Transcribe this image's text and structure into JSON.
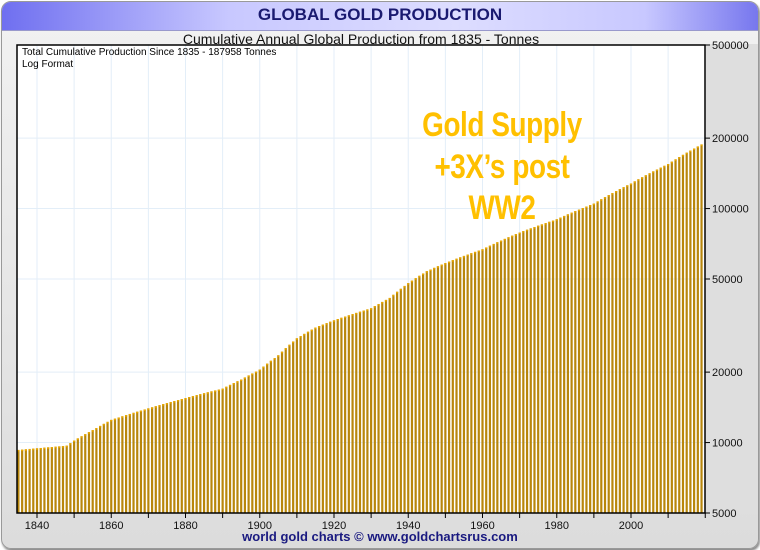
{
  "header": {
    "title": "GLOBAL GOLD PRODUCTION"
  },
  "footer": "world gold charts © www.goldchartsrus.com",
  "chart_data": {
    "type": "bar",
    "title": "Cumulative Annual Global Production from 1835 - Tonnes",
    "notes": [
      "Total Cumulative Production Since 1835 - 187958  Tonnes",
      "Log Format"
    ],
    "annotation": [
      "Gold Supply",
      "+3X’s post",
      "WW2"
    ],
    "annotation_color": "#ffc000",
    "bar_color": "#b8860b",
    "y_scale": "log",
    "ylim": [
      5000,
      500000
    ],
    "y_ticks": [
      5000,
      10000,
      20000,
      50000,
      100000,
      200000,
      500000
    ],
    "x_ticks": [
      1840,
      1860,
      1880,
      1900,
      1920,
      1940,
      1960,
      1980,
      2000
    ],
    "y_axis_position": "right",
    "grid": true,
    "x_start": 1835,
    "x_end": 2019,
    "values": [
      9300,
      9330,
      9360,
      9390,
      9420,
      9450,
      9480,
      9510,
      9540,
      9570,
      9600,
      9630,
      9660,
      9700,
      9950,
      10200,
      10420,
      10640,
      10860,
      11080,
      11300,
      11540,
      11780,
      12020,
      12260,
      12500,
      12650,
      12800,
      12950,
      13100,
      13250,
      13400,
      13550,
      13700,
      13850,
      14000,
      14150,
      14300,
      14450,
      14600,
      14750,
      14900,
      15050,
      15200,
      15350,
      15500,
      15650,
      15800,
      15950,
      16100,
      16250,
      16400,
      16550,
      16700,
      16850,
      17000,
      17320,
      17640,
      17960,
      18280,
      18600,
      18980,
      19360,
      19740,
      20120,
      20500,
      21120,
      21740,
      22360,
      22980,
      23600,
      24460,
      25320,
      26180,
      27040,
      27900,
      28520,
      29140,
      29760,
      30380,
      31000,
      31460,
      31920,
      32380,
      32840,
      33300,
      33720,
      34140,
      34560,
      34980,
      35400,
      35820,
      36240,
      36660,
      37080,
      37500,
      38300,
      39100,
      39900,
      40700,
      41500,
      42800,
      44100,
      45400,
      46700,
      48000,
      49200,
      50400,
      51600,
      52800,
      54000,
      54900,
      55800,
      56700,
      57600,
      58500,
      59350,
      60200,
      61050,
      61900,
      62750,
      63600,
      64450,
      65300,
      66150,
      67000,
      68200,
      69400,
      70600,
      71800,
      73000,
      74200,
      75400,
      76600,
      77800,
      79000,
      80100,
      81200,
      82300,
      83400,
      84500,
      85600,
      86700,
      87800,
      88900,
      90000,
      91500,
      93000,
      94500,
      96000,
      97500,
      99000,
      100500,
      102000,
      103500,
      105000,
      107300,
      109600,
      111900,
      114200,
      116500,
      118800,
      121100,
      123400,
      125700,
      128000,
      130700,
      133400,
      136100,
      138800,
      141500,
      144200,
      146900,
      149600,
      152300,
      155000,
      158660,
      162320,
      165980,
      169640,
      173300,
      176960,
      180620,
      184280,
      187958
    ]
  }
}
